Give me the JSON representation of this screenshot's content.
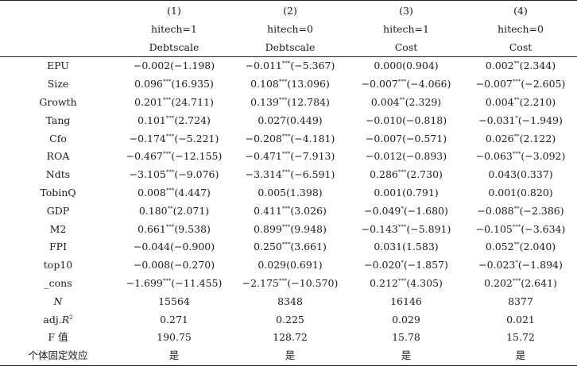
{
  "columns": [
    {
      "num": "(1)",
      "group": "hitech=1",
      "dep": "Debtscale"
    },
    {
      "num": "(2)",
      "group": "hitech=0",
      "dep": "Debtscale"
    },
    {
      "num": "(3)",
      "group": "hitech=1",
      "dep": "Cost"
    },
    {
      "num": "(4)",
      "group": "hitech=0",
      "dep": "Cost"
    }
  ],
  "rows": [
    {
      "label": "EPU",
      "cells": [
        {
          "coef": "−0.002",
          "stars": "",
          "t": "(−1.198)"
        },
        {
          "coef": "−0.011",
          "stars": "***",
          "t": "(−5.367)"
        },
        {
          "coef": "0.000",
          "stars": "",
          "t": "(0.904)"
        },
        {
          "coef": "0.002",
          "stars": "**",
          "t": "(2.344)"
        }
      ]
    },
    {
      "label": "Size",
      "cells": [
        {
          "coef": "0.096",
          "stars": "***",
          "t": "(16.935)"
        },
        {
          "coef": "0.108",
          "stars": "***",
          "t": "(13.096)"
        },
        {
          "coef": "−0.007",
          "stars": "***",
          "t": "(−4.066)"
        },
        {
          "coef": "−0.007",
          "stars": "***",
          "t": "(−2.605)"
        }
      ]
    },
    {
      "label": "Growth",
      "cells": [
        {
          "coef": "0.201",
          "stars": "***",
          "t": "(24.711)"
        },
        {
          "coef": "0.139",
          "stars": "***",
          "t": "(12.784)"
        },
        {
          "coef": "0.004",
          "stars": "**",
          "t": "(2.329)"
        },
        {
          "coef": "0.004",
          "stars": "**",
          "t": "(2.210)"
        }
      ]
    },
    {
      "label": "Tang",
      "cells": [
        {
          "coef": "0.101",
          "stars": "***",
          "t": "(2.724)"
        },
        {
          "coef": "0.027",
          "stars": "",
          "t": "(0.449)"
        },
        {
          "coef": "−0.010",
          "stars": "",
          "t": "(−0.818)"
        },
        {
          "coef": "−0.031",
          "stars": "*",
          "t": "(−1.949)"
        }
      ]
    },
    {
      "label": "Cfo",
      "cells": [
        {
          "coef": "−0.174",
          "stars": "***",
          "t": "(−5.221)"
        },
        {
          "coef": "−0.208",
          "stars": "***",
          "t": "(−4.181)"
        },
        {
          "coef": "−0.007",
          "stars": "",
          "t": "(−0.571)"
        },
        {
          "coef": "0.026",
          "stars": "**",
          "t": "(2.122)"
        }
      ]
    },
    {
      "label": "ROA",
      "cells": [
        {
          "coef": "−0.467",
          "stars": "***",
          "t": "(−12.155)"
        },
        {
          "coef": "−0.471",
          "stars": "***",
          "t": "(−7.913)"
        },
        {
          "coef": "−0.012",
          "stars": "",
          "t": "(−0.893)"
        },
        {
          "coef": "−0.063",
          "stars": "***",
          "t": "(−3.092)"
        }
      ]
    },
    {
      "label": "Ndts",
      "cells": [
        {
          "coef": "−3.105",
          "stars": "***",
          "t": "(−9.076)"
        },
        {
          "coef": "−3.314",
          "stars": "***",
          "t": "(−6.591)"
        },
        {
          "coef": "0.286",
          "stars": "***",
          "t": "(2.730)"
        },
        {
          "coef": "0.043",
          "stars": "",
          "t": "(0.337)"
        }
      ]
    },
    {
      "label": "TobinQ",
      "cells": [
        {
          "coef": "0.008",
          "stars": "***",
          "t": "(4.447)"
        },
        {
          "coef": "0.005",
          "stars": "",
          "t": "(1.398)"
        },
        {
          "coef": "0.001",
          "stars": "",
          "t": "(0.791)"
        },
        {
          "coef": "0.001",
          "stars": "",
          "t": "(0.820)"
        }
      ]
    },
    {
      "label": "GDP",
      "cells": [
        {
          "coef": "0.180",
          "stars": "**",
          "t": "(2.071)"
        },
        {
          "coef": "0.411",
          "stars": "***",
          "t": "(3.026)"
        },
        {
          "coef": "−0.049",
          "stars": "*",
          "t": "(−1.680)"
        },
        {
          "coef": "−0.088",
          "stars": "**",
          "t": "(−2.386)"
        }
      ]
    },
    {
      "label": "M2",
      "cells": [
        {
          "coef": "0.661",
          "stars": "***",
          "t": "(9.538)"
        },
        {
          "coef": "0.899",
          "stars": "***",
          "t": "(9.948)"
        },
        {
          "coef": "−0.143",
          "stars": "***",
          "t": "(−5.891)"
        },
        {
          "coef": "−0.105",
          "stars": "***",
          "t": "(−3.634)"
        }
      ]
    },
    {
      "label": "FPI",
      "cells": [
        {
          "coef": "−0.044",
          "stars": "",
          "t": "(−0.900)"
        },
        {
          "coef": "0.250",
          "stars": "***",
          "t": "(3.661)"
        },
        {
          "coef": "0.031",
          "stars": "",
          "t": "(1.583)"
        },
        {
          "coef": "0.052",
          "stars": "**",
          "t": "(2.040)"
        }
      ]
    },
    {
      "label": "top10",
      "cells": [
        {
          "coef": "−0.008",
          "stars": "",
          "t": "(−0.270)"
        },
        {
          "coef": "0.029",
          "stars": "",
          "t": "(0.691)"
        },
        {
          "coef": "−0.020",
          "stars": "*",
          "t": "(−1.857)"
        },
        {
          "coef": "−0.023",
          "stars": "*",
          "t": "(−1.894)"
        }
      ]
    },
    {
      "label": "_cons",
      "cells": [
        {
          "coef": "−1.699",
          "stars": "***",
          "t": "(−11.455)"
        },
        {
          "coef": "−2.175",
          "stars": "***",
          "t": "(−10.570)"
        },
        {
          "coef": "0.212",
          "stars": "***",
          "t": "(4.305)"
        },
        {
          "coef": "0.202",
          "stars": "***",
          "t": "(2.641)"
        }
      ]
    }
  ],
  "stats": [
    {
      "label": "N",
      "italic": true,
      "values": [
        "15564",
        "8348",
        "16146",
        "8377"
      ]
    },
    {
      "label_prefix": "adj.",
      "label_ital": "R",
      "label_sup": "2",
      "values": [
        "0.271",
        "0.225",
        "0.029",
        "0.021"
      ]
    },
    {
      "label": "F 值",
      "values": [
        "190.75",
        "128.72",
        "15.78",
        "15.72"
      ]
    },
    {
      "label": "个体固定效应",
      "values": [
        "是",
        "是",
        "是",
        "是"
      ]
    }
  ]
}
